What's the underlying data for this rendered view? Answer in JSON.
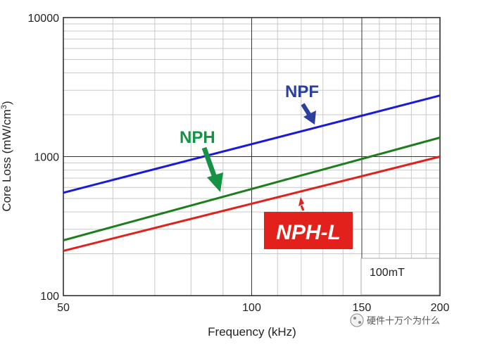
{
  "chart_data": {
    "type": "line",
    "title": "",
    "xlabel": "Frequency (kHz)",
    "ylabel": "Core Loss (mW/cm",
    "ylabel_sup": "3",
    "ylabel_end": ")",
    "x_scale": "log",
    "y_scale": "log",
    "xlim": [
      50,
      200
    ],
    "ylim": [
      100,
      10000
    ],
    "x_ticks": [
      50,
      100,
      150,
      200
    ],
    "x_tick_labels": [
      "50",
      "100",
      "150",
      "200"
    ],
    "y_ticks": [
      100,
      1000,
      10000
    ],
    "y_tick_labels": [
      "100",
      "1000",
      "10000"
    ],
    "annotation": "100mT",
    "series": [
      {
        "name": "NPF",
        "color": "#1a1adf",
        "x": [
          50,
          200
        ],
        "y": [
          550,
          2750
        ]
      },
      {
        "name": "NPH",
        "color": "#1e7d1e",
        "x": [
          50,
          200
        ],
        "y": [
          250,
          1370
        ]
      },
      {
        "name": "NPH-L",
        "color": "#e3211c",
        "x": [
          50,
          200
        ],
        "y": [
          210,
          1000
        ]
      }
    ],
    "labels": [
      {
        "text": "NPF",
        "color": "#2a3f9e"
      },
      {
        "text": "NPH",
        "color": "#159243"
      },
      {
        "text": "NPH-L",
        "color": "#ffffff",
        "bg": "#e3211c"
      }
    ]
  },
  "watermark": "硬件十万个为什么"
}
